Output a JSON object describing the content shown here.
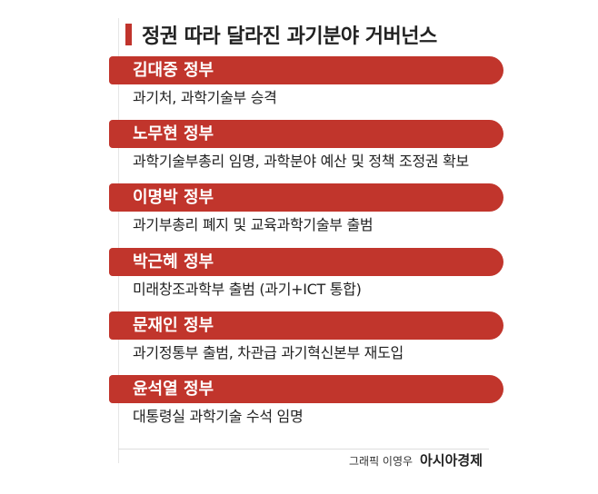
{
  "title": "정권 따라 달라진 과기분야 거버넌스",
  "sections": [
    {
      "header": "김대중 정부",
      "description": "과기처, 과학기술부 승격"
    },
    {
      "header": "노무현 정부",
      "description": "과학기술부총리 임명, 과학분야 예산 및 정책 조정권 확보"
    },
    {
      "header": "이명박 정부",
      "description": "과기부총리 폐지 및 교육과학기술부 출범"
    },
    {
      "header": "박근혜 정부",
      "description": "미래창조과학부 출범 (과기+ICT 통합)"
    },
    {
      "header": "문재인 정부",
      "description": "과기정통부 출범, 차관급 과기혁신본부 재도입"
    },
    {
      "header": "윤석열 정부",
      "description": "대통령실 과학기술 수석 임명"
    }
  ],
  "credit": {
    "byline": "그래픽 이영우",
    "publisher": "아시아경제"
  }
}
